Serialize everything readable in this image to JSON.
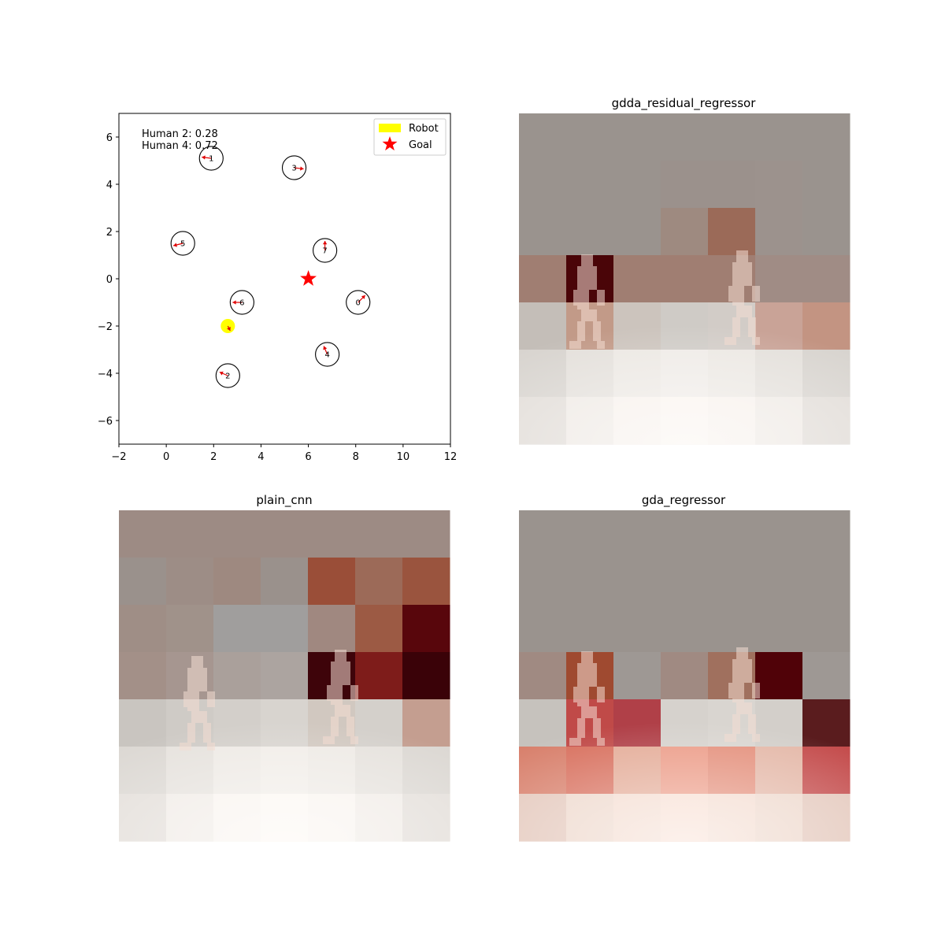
{
  "chart_data": [
    {
      "type": "scatter",
      "title": "",
      "xlabel": "",
      "ylabel": "",
      "xlim": [
        -2,
        12
      ],
      "ylim": [
        -7,
        7
      ],
      "xticks": [
        -2,
        0,
        2,
        4,
        6,
        8,
        10,
        12
      ],
      "yticks": [
        -6,
        -4,
        -2,
        0,
        2,
        4,
        6
      ],
      "xtick_labels": [
        "−2",
        "0",
        "2",
        "4",
        "6",
        "8",
        "10",
        "12"
      ],
      "ytick_labels": [
        "−6",
        "−4",
        "−2",
        "0",
        "2",
        "4",
        "6"
      ],
      "grid": false,
      "legend_position": "top-right",
      "legend": [
        {
          "label": "Robot",
          "color": "#ffff00",
          "marker": "rectangle"
        },
        {
          "label": "Goal",
          "color": "#ff0000",
          "marker": "star"
        }
      ],
      "annotations": [
        "Human 2: 0.28",
        "Human 4: 0.72"
      ],
      "robot": {
        "x": 2.6,
        "y": -2.0,
        "color": "#ffff00",
        "heading": [
          0.1,
          -0.2
        ]
      },
      "goal": {
        "x": 6.0,
        "y": 0.0,
        "color": "#ff0000"
      },
      "humans": [
        {
          "id": "0",
          "x": 8.1,
          "y": -1.0,
          "dx": 0.3,
          "dy": 0.3
        },
        {
          "id": "1",
          "x": 1.9,
          "y": 5.1,
          "dx": -0.4,
          "dy": 0.05
        },
        {
          "id": "2",
          "x": 2.6,
          "y": -4.1,
          "dx": -0.35,
          "dy": 0.15
        },
        {
          "id": "3",
          "x": 5.4,
          "y": 4.7,
          "dx": 0.4,
          "dy": -0.05
        },
        {
          "id": "4",
          "x": 6.8,
          "y": -3.2,
          "dx": -0.15,
          "dy": 0.35
        },
        {
          "id": "5",
          "x": 0.7,
          "y": 1.5,
          "dx": -0.4,
          "dy": -0.1
        },
        {
          "id": "6",
          "x": 3.2,
          "y": -1.0,
          "dx": -0.4,
          "dy": 0.0
        },
        {
          "id": "7",
          "x": 6.7,
          "y": 1.2,
          "dx": 0.0,
          "dy": 0.4
        }
      ]
    },
    {
      "type": "heatmap",
      "title": "gdda_residual_regressor",
      "grid_size": [
        7,
        7
      ],
      "colors": [
        [
          "#9a938e",
          "#9a938e",
          "#9a938e",
          "#9a938e",
          "#9a938e",
          "#9a938e",
          "#9a938e"
        ],
        [
          "#9a938e",
          "#9a938e",
          "#9a938e",
          "#9b918c",
          "#9b918c",
          "#9c928d",
          "#9a938e"
        ],
        [
          "#9a938e",
          "#9a938e",
          "#9a938e",
          "#9e8a80",
          "#9b6a58",
          "#9c928d",
          "#9a938e"
        ],
        [
          "#a07e72",
          "#4a0508",
          "#a07e72",
          "#a07e72",
          "#a07e72",
          "#a08c85",
          "#a08c85"
        ],
        [
          "#c4beb8",
          "#c29a88",
          "#ccc4bd",
          "#cfcbc6",
          "#d2ccc7",
          "#c9a397",
          "#c39482"
        ],
        [
          "#d8d4cf",
          "#e4e0db",
          "#ece8e3",
          "#efebe7",
          "#ece8e3",
          "#e4e0db",
          "#d8d4cf"
        ],
        [
          "#e2ddd8",
          "#efeae5",
          "#f7f1ec",
          "#faf4ef",
          "#f7f1ec",
          "#efeae5",
          "#e2ddd8"
        ]
      ]
    },
    {
      "type": "heatmap",
      "title": "plain_cnn",
      "grid_size": [
        7,
        7
      ],
      "colors": [
        [
          "#9d8b84",
          "#9d8b84",
          "#9d8b84",
          "#9d8b84",
          "#9d8b84",
          "#9d8b84",
          "#9d8b84"
        ],
        [
          "#9a918c",
          "#9d8d86",
          "#9e8980",
          "#9a918c",
          "#9a4e38",
          "#9c6a58",
          "#9a543e"
        ],
        [
          "#9f8e86",
          "#a0928a",
          "#a09e9d",
          "#a09e9d",
          "#a08880",
          "#9c5a44",
          "#58060c"
        ],
        [
          "#a39088",
          "#a69690",
          "#aaa09b",
          "#aca4a0",
          "#3e040a",
          "#7e1c1a",
          "#3a0208"
        ],
        [
          "#c9c5c0",
          "#cfcbc6",
          "#d3cfca",
          "#d8d4cf",
          "#d1c8c0",
          "#d4d0cb",
          "#c49e90"
        ],
        [
          "#dcd8d3",
          "#e6e2dd",
          "#eeeae5",
          "#f1ede8",
          "#eeeae5",
          "#e6e2dd",
          "#dcd8d3"
        ],
        [
          "#e4dfda",
          "#f1ece7",
          "#f9f4ef",
          "#fcf7f2",
          "#f9f4ef",
          "#f1ece7",
          "#e4dfda"
        ]
      ]
    },
    {
      "type": "heatmap",
      "title": "gda_regressor",
      "grid_size": [
        7,
        7
      ],
      "colors": [
        [
          "#9a938e",
          "#9a938e",
          "#9a938e",
          "#9a938e",
          "#9a938e",
          "#9a938e",
          "#9a938e"
        ],
        [
          "#9a938e",
          "#9a938e",
          "#9a938e",
          "#9a938e",
          "#9a938e",
          "#9a938e",
          "#9a938e"
        ],
        [
          "#9a938e",
          "#9a938e",
          "#9a938e",
          "#9a938e",
          "#9a938e",
          "#9a938e",
          "#9a938e"
        ],
        [
          "#a08a82",
          "#9f4a30",
          "#9e9894",
          "#a08a82",
          "#a0705e",
          "#500208",
          "#9e9894"
        ],
        [
          "#c6c2bd",
          "#c04a48",
          "#b04048",
          "#d6d2cd",
          "#d9d5d0",
          "#d3cfca",
          "#5a1c1e"
        ],
        [
          "#d8806c",
          "#d8705e",
          "#e4ac98",
          "#ec9c88",
          "#e4907c",
          "#e4b8a8",
          "#c44c4c"
        ],
        [
          "#e4c8bc",
          "#eed8cc",
          "#f4dcd0",
          "#f8dfd3",
          "#f4dcd0",
          "#eed8cc",
          "#e4c8bc"
        ]
      ]
    }
  ]
}
